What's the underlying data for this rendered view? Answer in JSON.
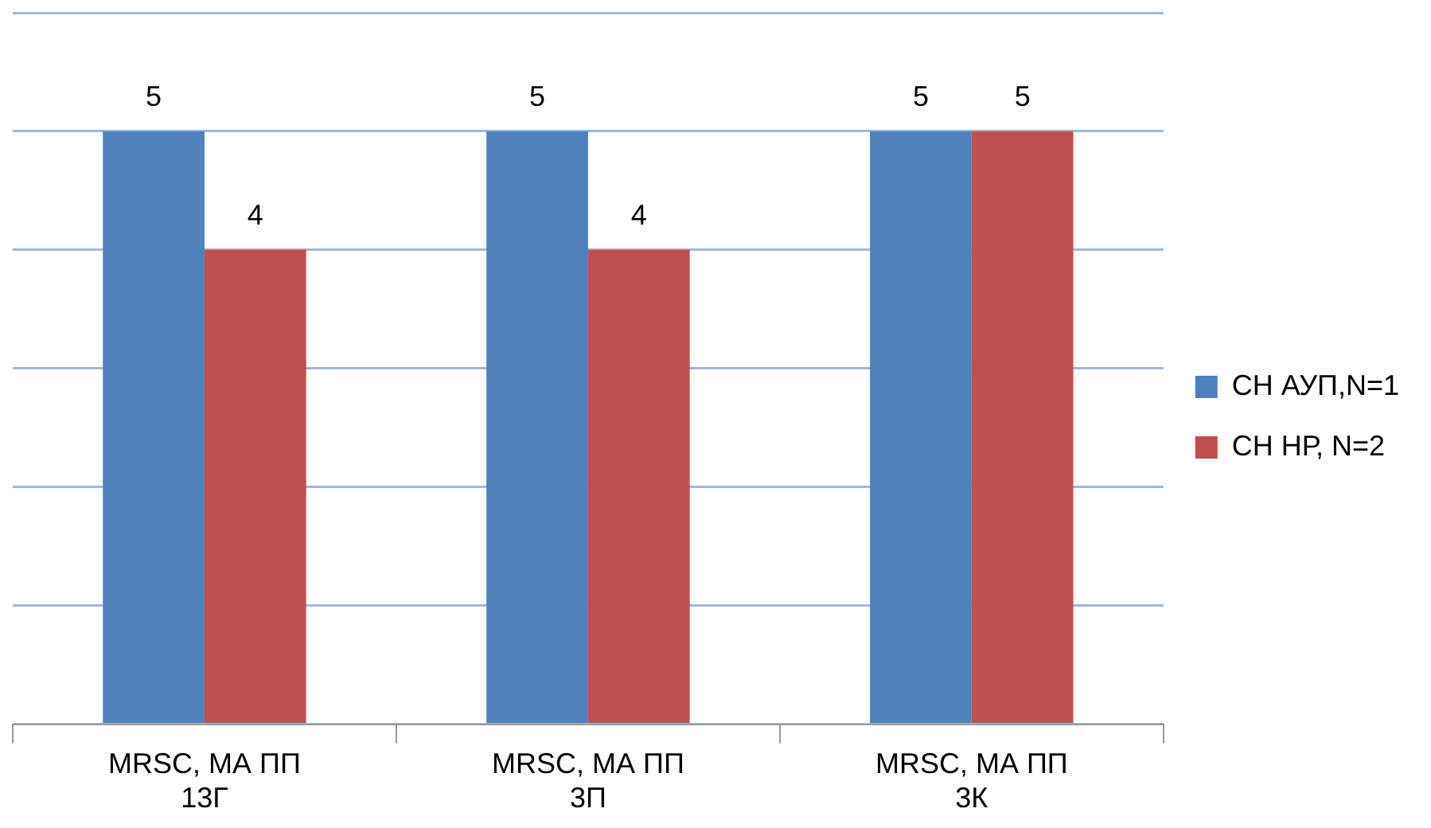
{
  "chart_data": {
    "type": "bar",
    "categories": [
      "MRSC, МА ПП 13Г",
      "MRSC, МА ПП 3П",
      "MRSC, МА ПП 3К"
    ],
    "series": [
      {
        "name": "СН АУП,N=1",
        "color": "#4f81bd",
        "values": [
          5,
          5,
          5
        ]
      },
      {
        "name": "СН НР, N=2",
        "color": "#c0504d",
        "values": [
          4,
          4,
          5
        ]
      }
    ],
    "ylim": [
      0,
      6
    ],
    "yticks": [
      {
        "value": 0,
        "label": null
      },
      {
        "value": 1,
        "label": null
      },
      {
        "value": 2,
        "label": null
      },
      {
        "value": 3,
        "label": null
      },
      {
        "value": 4,
        "label": null
      },
      {
        "value": 5,
        "label": null
      },
      {
        "value": 6,
        "label": null
      }
    ],
    "tick_labels": "x",
    "grid": "y",
    "legend": "right",
    "data_labels": true
  }
}
